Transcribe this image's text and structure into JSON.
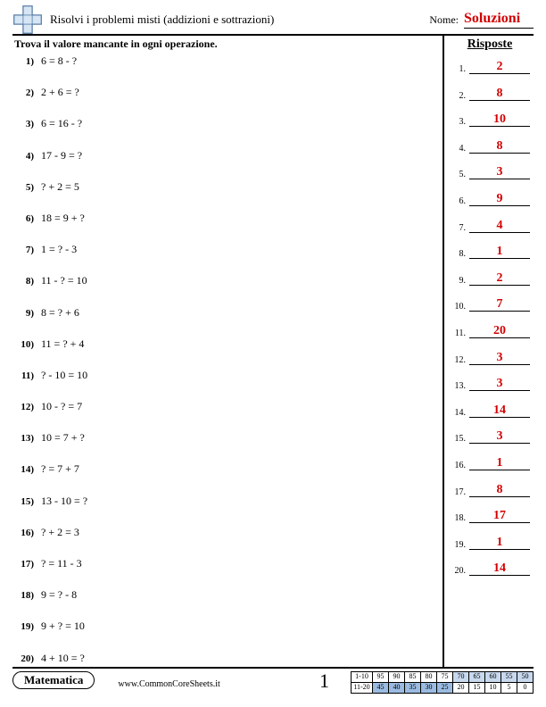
{
  "header": {
    "title": "Risolvi i problemi misti (addizioni e sottrazioni)",
    "name_label": "Nome:",
    "solutions": "Soluzioni",
    "logo_colors": {
      "fill": "#d7e6f5",
      "stroke": "#5a7fa6"
    }
  },
  "body": {
    "instruction": "Trova il valore mancante in ogni operazione.",
    "answers_header": "Risposte",
    "problems": [
      {
        "n": "1)",
        "expr": "6 = 8 - ?"
      },
      {
        "n": "2)",
        "expr": "2 + 6 = ?"
      },
      {
        "n": "3)",
        "expr": "6 = 16 - ?"
      },
      {
        "n": "4)",
        "expr": "17 - 9 = ?"
      },
      {
        "n": "5)",
        "expr": "? + 2 = 5"
      },
      {
        "n": "6)",
        "expr": "18 = 9 + ?"
      },
      {
        "n": "7)",
        "expr": "1 = ? - 3"
      },
      {
        "n": "8)",
        "expr": "11 - ? = 10"
      },
      {
        "n": "9)",
        "expr": "8 = ? + 6"
      },
      {
        "n": "10)",
        "expr": "11 = ? + 4"
      },
      {
        "n": "11)",
        "expr": "? - 10 = 10"
      },
      {
        "n": "12)",
        "expr": "10 - ? = 7"
      },
      {
        "n": "13)",
        "expr": "10 = 7 + ?"
      },
      {
        "n": "14)",
        "expr": "? = 7 + 7"
      },
      {
        "n": "15)",
        "expr": "13 - 10 = ?"
      },
      {
        "n": "16)",
        "expr": "? + 2 = 3"
      },
      {
        "n": "17)",
        "expr": "? = 11 - 3"
      },
      {
        "n": "18)",
        "expr": "9 = ? - 8"
      },
      {
        "n": "19)",
        "expr": "9 + ? = 10"
      },
      {
        "n": "20)",
        "expr": "4 + 10 = ?"
      }
    ],
    "answers": [
      {
        "n": "1.",
        "v": "2"
      },
      {
        "n": "2.",
        "v": "8"
      },
      {
        "n": "3.",
        "v": "10"
      },
      {
        "n": "4.",
        "v": "8"
      },
      {
        "n": "5.",
        "v": "3"
      },
      {
        "n": "6.",
        "v": "9"
      },
      {
        "n": "7.",
        "v": "4"
      },
      {
        "n": "8.",
        "v": "1"
      },
      {
        "n": "9.",
        "v": "2"
      },
      {
        "n": "10.",
        "v": "7"
      },
      {
        "n": "11.",
        "v": "20"
      },
      {
        "n": "12.",
        "v": "3"
      },
      {
        "n": "13.",
        "v": "3"
      },
      {
        "n": "14.",
        "v": "14"
      },
      {
        "n": "15.",
        "v": "3"
      },
      {
        "n": "16.",
        "v": "1"
      },
      {
        "n": "17.",
        "v": "8"
      },
      {
        "n": "18.",
        "v": "17"
      },
      {
        "n": "19.",
        "v": "1"
      },
      {
        "n": "20.",
        "v": "14"
      }
    ]
  },
  "footer": {
    "subject": "Matematica",
    "site": "www.CommonCoreSheets.it",
    "page": "1",
    "grade": {
      "row1_label": "1-10",
      "row2_label": "11-20",
      "row1": [
        "95",
        "90",
        "85",
        "80",
        "75",
        "70",
        "65",
        "60",
        "55",
        "50"
      ],
      "row2": [
        "45",
        "40",
        "35",
        "30",
        "25",
        "20",
        "15",
        "10",
        "5",
        "0"
      ],
      "row1_shaded_from": 5,
      "row2_shaded_to": 4,
      "shade1_color": "#9bbbe0",
      "shade2_color": "#c8d9ee"
    }
  },
  "colors": {
    "answer_text": "#d30000",
    "border": "#000000",
    "background": "#ffffff"
  }
}
